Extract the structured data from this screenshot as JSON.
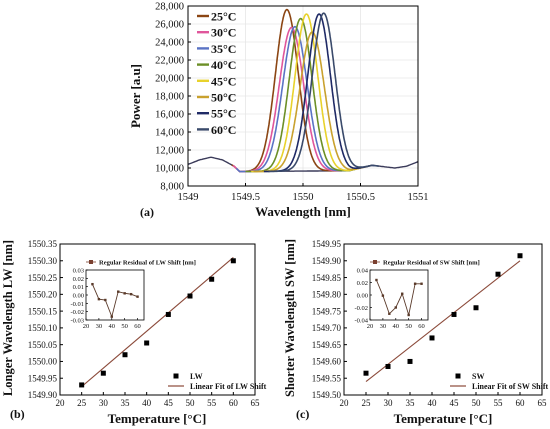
{
  "chart_data": [
    {
      "panel": "(a)",
      "type": "line",
      "xlabel": "Wavelength [nm]",
      "ylabel": "Power [a.u]",
      "xlim": [
        1549,
        1551
      ],
      "ylim": [
        8000,
        28000
      ],
      "x_ticks": [
        "1549",
        "1549.5",
        "1550",
        "1550.5",
        "1551"
      ],
      "y_ticks": [
        "8,000",
        "10,000",
        "12,000",
        "14,000",
        "16,000",
        "18,000",
        "20,000",
        "22,000",
        "24,000",
        "26,000",
        "28,000"
      ],
      "legend_position": "top-left",
      "baseline": {
        "x": [
          1549.0,
          1549.1,
          1549.2,
          1549.3,
          1549.4,
          1549.45,
          1550.4,
          1550.5,
          1550.6,
          1550.7,
          1550.8,
          1550.9,
          1551.0
        ],
        "y": [
          10400,
          10900,
          11200,
          10900,
          10200,
          9600,
          9700,
          10000,
          10300,
          10150,
          10000,
          10200,
          10700
        ]
      },
      "series": [
        {
          "name": "25°C",
          "color": "#8b4513",
          "peak_x": 1549.86,
          "peak_y": 27600,
          "width": 0.16
        },
        {
          "name": "30°C",
          "color": "#e0569b",
          "peak_x": 1549.9,
          "peak_y": 25600,
          "width": 0.17
        },
        {
          "name": "35°C",
          "color": "#5a73c4",
          "peak_x": 1549.93,
          "peak_y": 25700,
          "width": 0.17
        },
        {
          "name": "40°C",
          "color": "#6c8f27",
          "peak_x": 1549.98,
          "peak_y": 26600,
          "width": 0.16
        },
        {
          "name": "45°C",
          "color": "#e8d22c",
          "peak_x": 1550.03,
          "peak_y": 27100,
          "width": 0.16
        },
        {
          "name": "50°C",
          "color": "#c9a12e",
          "peak_x": 1550.08,
          "peak_y": 25100,
          "width": 0.17
        },
        {
          "name": "55°C",
          "color": "#1f2a66",
          "peak_x": 1550.14,
          "peak_y": 27100,
          "width": 0.16
        },
        {
          "name": "60°C",
          "color": "#3a4a6b",
          "peak_x": 1550.18,
          "peak_y": 27200,
          "width": 0.16
        }
      ]
    },
    {
      "panel": "(b)",
      "type": "scatter",
      "xlabel": "Temperature [°C]",
      "ylabel": "Longer Wavelength LW [nm]",
      "xlim": [
        20,
        65
      ],
      "ylim": [
        1549.9,
        1550.35
      ],
      "x_ticks": [
        "20",
        "25",
        "30",
        "35",
        "40",
        "45",
        "50",
        "55",
        "60",
        "65"
      ],
      "y_ticks": [
        "1549.90",
        "1549.95",
        "1550.00",
        "1550.05",
        "1550.10",
        "1550.15",
        "1550.20",
        "1550.25",
        "1550.30",
        "1550.35"
      ],
      "series": [
        {
          "name": "LW",
          "x": [
            25,
            30,
            35,
            40,
            45,
            50,
            55,
            60
          ],
          "y": [
            1549.93,
            1549.965,
            1550.02,
            1550.055,
            1550.14,
            1550.195,
            1550.245,
            1550.3
          ]
        }
      ],
      "fit": {
        "name": "Linear Fit of LW Shift",
        "x": [
          25,
          60
        ],
        "y": [
          1549.925,
          1550.31
        ],
        "color": "#8b4a3a"
      },
      "inset": {
        "legend": "Regular Residual of LW Shift [nm]",
        "x_ticks": [
          "20",
          "30",
          "40",
          "50",
          "60"
        ],
        "y_ticks": [
          "0.03",
          "0.02",
          "0.01",
          "0.00",
          "-0.01",
          "-0.02",
          "-0.03"
        ],
        "xlim": [
          20,
          65
        ],
        "ylim": [
          -0.03,
          0.03
        ],
        "x": [
          25,
          30,
          35,
          40,
          45,
          50,
          55,
          60
        ],
        "y": [
          0.013,
          -0.005,
          -0.006,
          -0.026,
          0.004,
          0.002,
          0.001,
          -0.002
        ]
      }
    },
    {
      "panel": "(c)",
      "type": "scatter",
      "xlabel": "Temperature [°C]",
      "ylabel": "Shorter Wavelength SW [nm]",
      "xlim": [
        20,
        65
      ],
      "ylim": [
        1549.5,
        1549.95
      ],
      "x_ticks": [
        "20",
        "25",
        "30",
        "35",
        "40",
        "45",
        "50",
        "55",
        "60",
        "65"
      ],
      "y_ticks": [
        "1549.50",
        "1549.55",
        "1549.60",
        "1549.65",
        "1549.70",
        "1549.75",
        "1549.80",
        "1549.85",
        "1549.90",
        "1549.95"
      ],
      "series": [
        {
          "name": "SW",
          "x": [
            25,
            30,
            35,
            40,
            45,
            50,
            55,
            60
          ],
          "y": [
            1549.565,
            1549.585,
            1549.6,
            1549.67,
            1549.74,
            1549.76,
            1549.86,
            1549.915
          ]
        }
      ],
      "fit": {
        "name": "Linear Fit of SW Shift",
        "x": [
          25,
          60
        ],
        "y": [
          1549.54,
          1549.9
        ],
        "color": "#8b4a3a"
      },
      "inset": {
        "legend": "Regular Residual of SW Shift [nm]",
        "x_ticks": [
          "20",
          "30",
          "40",
          "50",
          "60"
        ],
        "y_ticks": [
          "0.04",
          "0.02",
          "0.00",
          "-0.02",
          "-0.04"
        ],
        "xlim": [
          20,
          65
        ],
        "ylim": [
          -0.04,
          0.04
        ],
        "x": [
          25,
          30,
          35,
          40,
          45,
          50,
          55,
          60
        ],
        "y": [
          0.024,
          -0.001,
          -0.03,
          -0.02,
          0.002,
          -0.032,
          0.018,
          0.018
        ]
      }
    }
  ]
}
